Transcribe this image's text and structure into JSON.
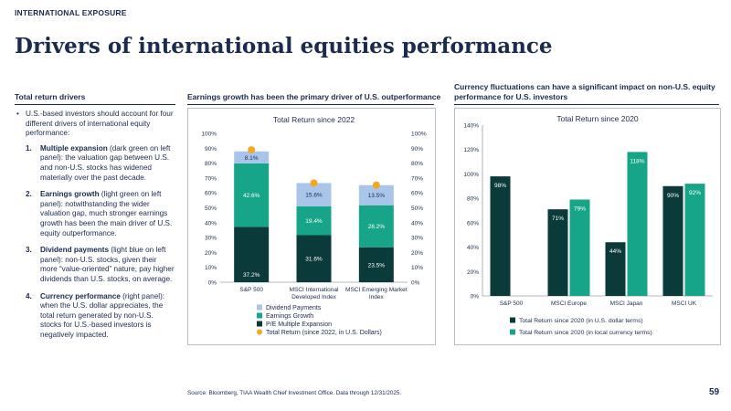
{
  "header": {
    "eyebrow": "INTERNATIONAL EXPOSURE",
    "title": "Drivers of international equities performance"
  },
  "left": {
    "heading": "Total return drivers",
    "intro": "U.S.-based investors should account for four different drivers of international equity performance:",
    "items": [
      {
        "num": "1.",
        "bold": "Multiple expansion",
        "text": " (dark green on left panel): the valuation gap between U.S. and non-U.S. stocks has widened materially over the past decade."
      },
      {
        "num": "2.",
        "bold": "Earnings growth",
        "text": " (light green on left panel): notwithstanding the wider valuation gap, much stronger earnings growth has been the main driver of U.S. equity outperformance."
      },
      {
        "num": "3.",
        "bold": "Dividend payments",
        "text": " (light blue on left panel): non-U.S. stocks, given their more “value-oriented” nature, pay higher dividends than U.S. stocks, on average."
      },
      {
        "num": "4.",
        "bold": "Currency performance",
        "text": " (right panel): when the U.S. dollar appreciates, the total return generated by non-U.S. stocks for U.S.-based investors is negatively impacted."
      }
    ]
  },
  "middle": {
    "heading": "Earnings growth has been the primary driver of U.S. outperformance"
  },
  "right": {
    "heading": "Currency fluctuations can have a significant impact on non-U.S. equity performance for U.S. investors"
  },
  "footer": {
    "source": "Source: Bloomberg, TIAA Wealth Chief Investment Office. Data through 12/31/2025.",
    "page": "59"
  },
  "chart_data": [
    {
      "type": "bar",
      "stacked": true,
      "title": "Total Return since 2022",
      "categories": [
        "S&P 500",
        "MSCI International Developed Index",
        "MSCI Emerging Market Index"
      ],
      "category_lines": [
        [
          "S&P 500"
        ],
        [
          "MSCI International",
          "Developed Index"
        ],
        [
          "MSCI Emerging Market",
          "Index"
        ]
      ],
      "series": [
        {
          "name": "P/E Multiple Expansion",
          "values": [
            37.2,
            31.6,
            23.5
          ],
          "labels": [
            "37.2%",
            "31.6%",
            "23.5%"
          ],
          "color": "#0b3a3a",
          "label_color": "#ffffff"
        },
        {
          "name": "Earnings Growth",
          "values": [
            42.6,
            19.4,
            28.2
          ],
          "labels": [
            "42.6%",
            "19.4%",
            "28.2%"
          ],
          "color": "#17a589",
          "label_color": "#ffffff"
        },
        {
          "name": "Dividend Payments",
          "values": [
            8.1,
            15.6,
            13.5
          ],
          "labels": [
            "8.1%",
            "15.6%",
            "13.5%"
          ],
          "color": "#a9c6ea",
          "label_color": "#1a2b4c"
        }
      ],
      "markers": {
        "name": "Total Return (since 2022, in U.S. Dollars)",
        "values": [
          88.9,
          66.6,
          65.2
        ],
        "color": "#f5a623"
      },
      "legend_order": [
        "Dividend Payments",
        "Earnings Growth",
        "P/E Multiple Expansion",
        "Total Return (since 2022, in U.S. Dollars)"
      ],
      "legend_position": "bottom",
      "ylim": [
        0,
        100
      ],
      "yticks": [
        "0%",
        "10%",
        "20%",
        "30%",
        "40%",
        "50%",
        "60%",
        "70%",
        "80%",
        "90%",
        "100%"
      ],
      "secondary_axis": true,
      "grid": false
    },
    {
      "type": "bar",
      "title": "Total Return since 2020",
      "categories": [
        "S&P 500",
        "MSCI Europe",
        "MSCI Japan",
        "MSCI UK"
      ],
      "series": [
        {
          "name": "Total Return since 2020 (in U.S. dollar terms)",
          "values": [
            98,
            71,
            44,
            90
          ],
          "labels": [
            "98%",
            "71%",
            "44%",
            "90%"
          ],
          "color": "#0b3a3a",
          "label_color": "#ffffff"
        },
        {
          "name": "Total Return since 2020 (in local currency terms)",
          "values": [
            null,
            79,
            118,
            92
          ],
          "labels": [
            "",
            "79%",
            "118%",
            "92%"
          ],
          "color": "#17a589",
          "label_color": "#ffffff"
        }
      ],
      "legend_position": "bottom",
      "ylim": [
        0,
        140
      ],
      "yticks": [
        "0%",
        "20%",
        "40%",
        "60%",
        "80%",
        "100%",
        "120%",
        "140%"
      ],
      "grid": false
    }
  ]
}
